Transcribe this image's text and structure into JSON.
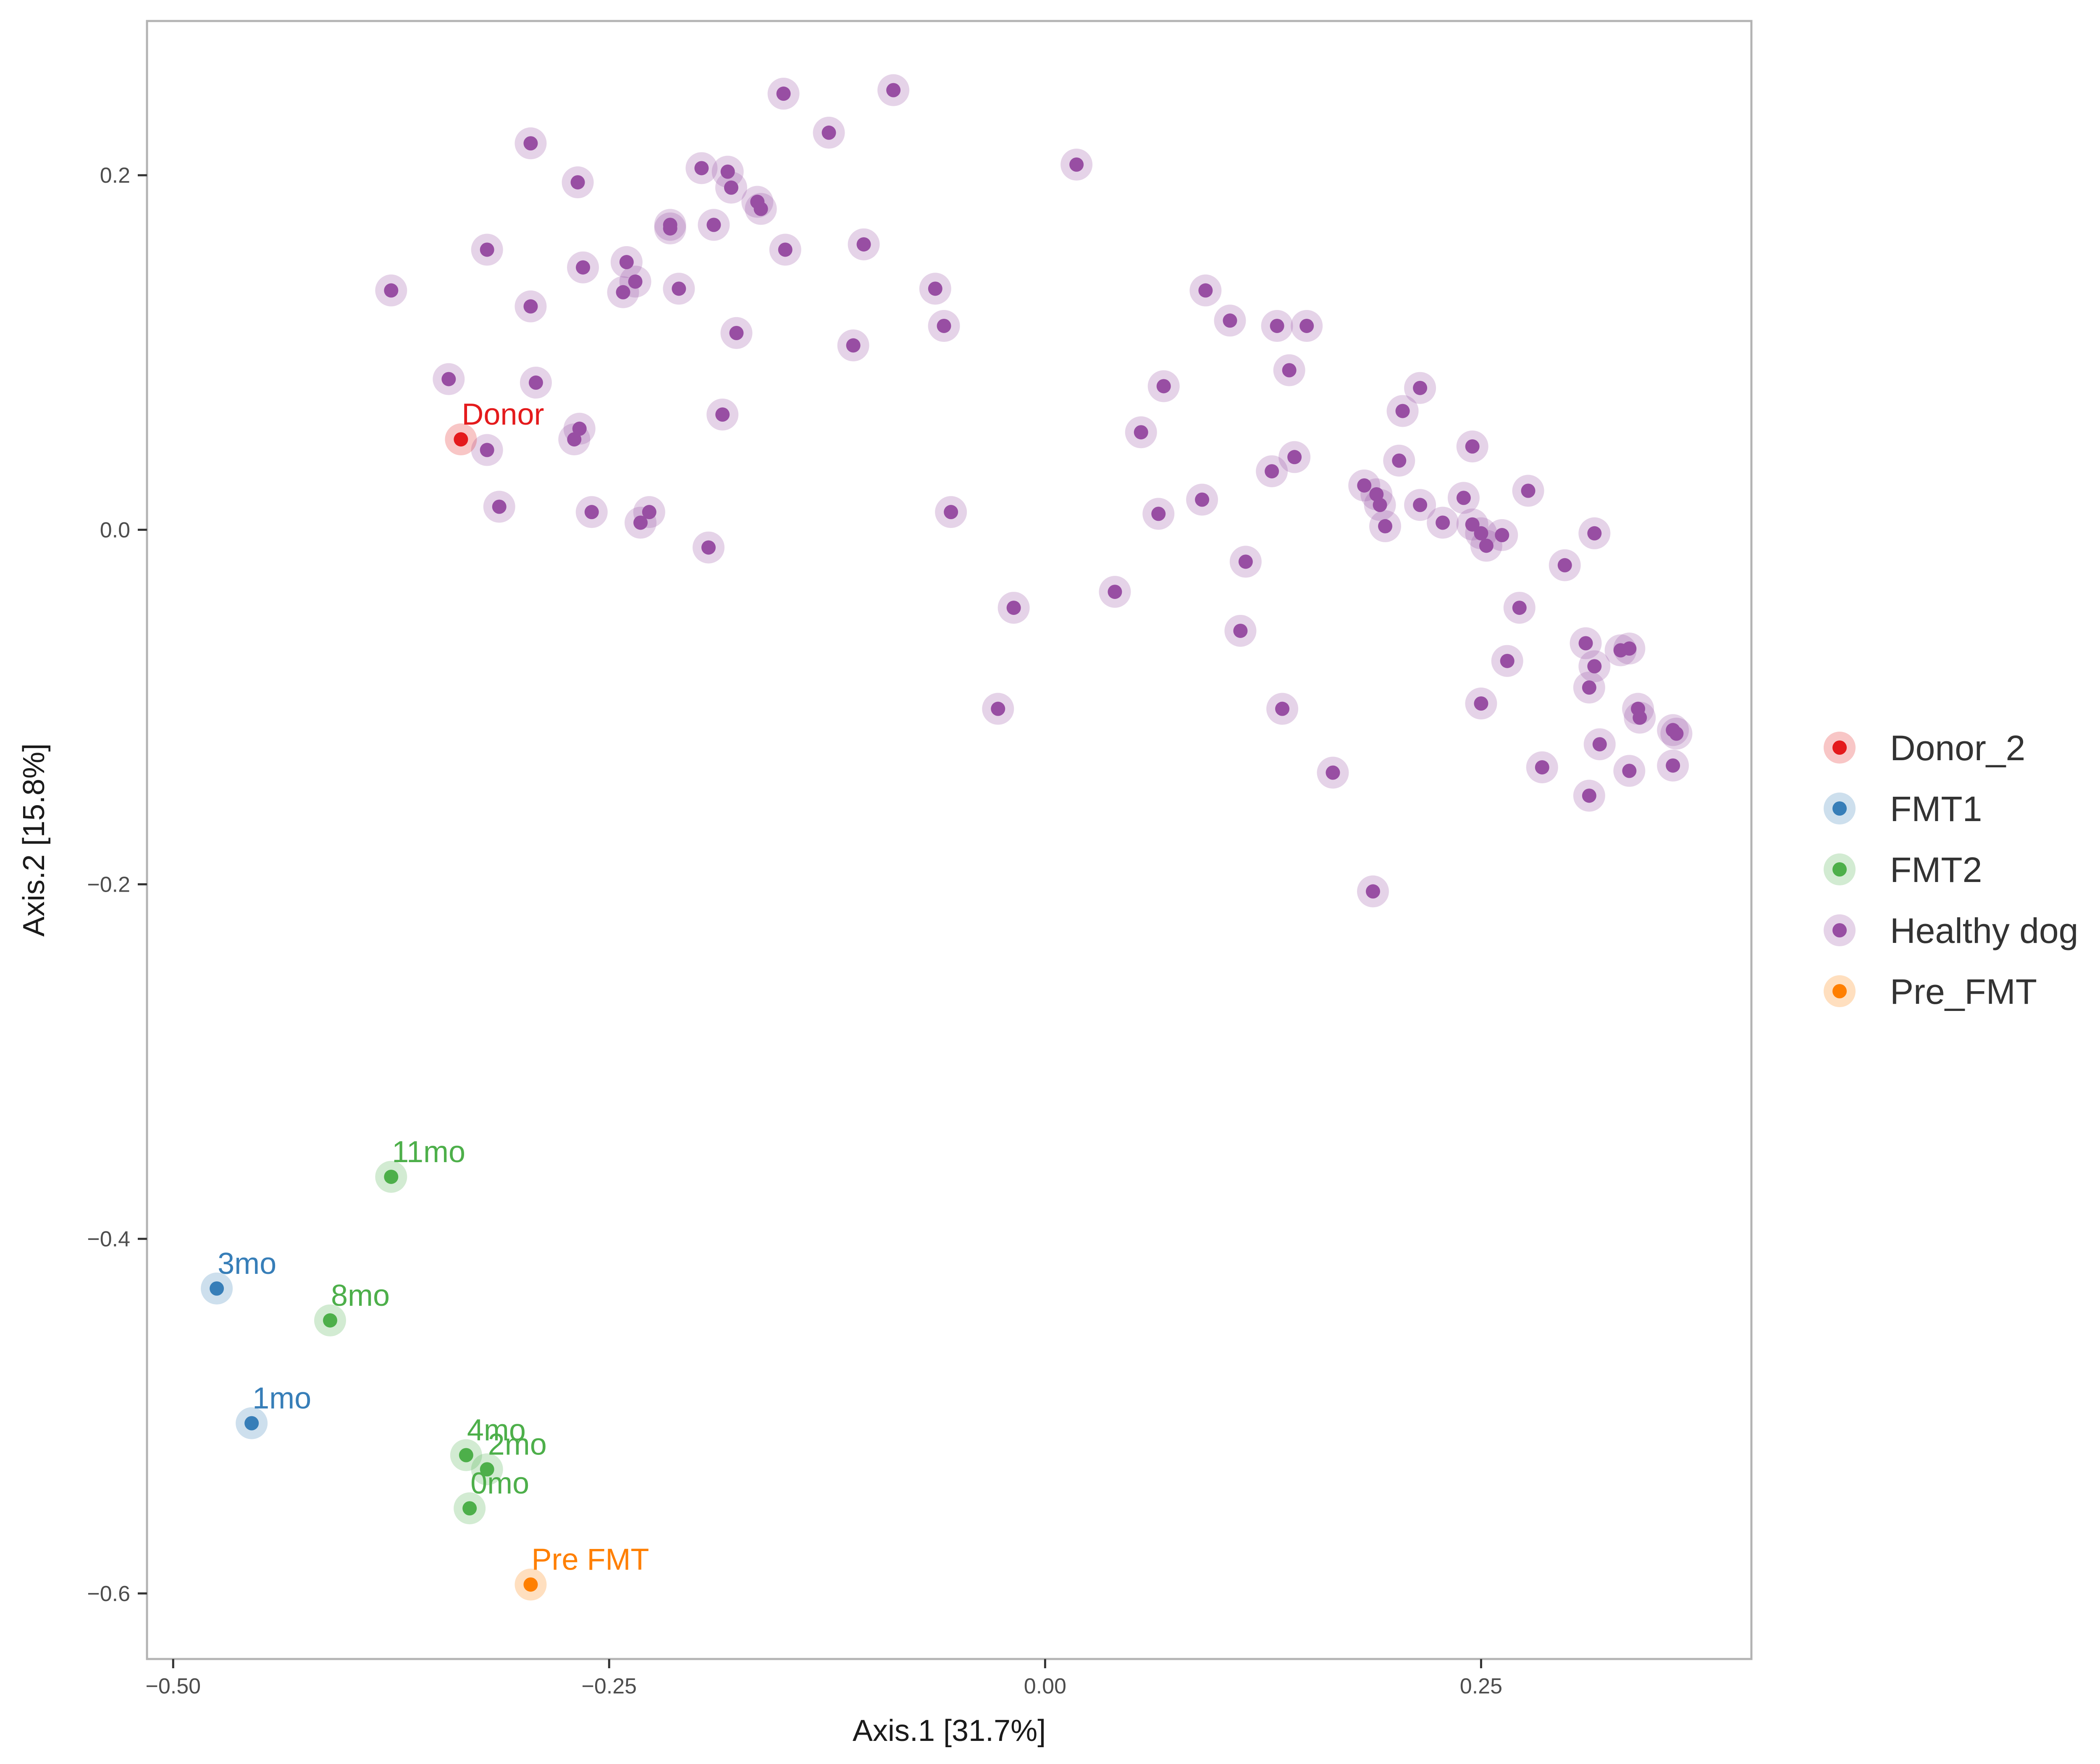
{
  "colors": {
    "Donor_2": "#e41a1c",
    "FMT1": "#377eb8",
    "FMT2": "#4daf4a",
    "Healthy dog": "#984ea3",
    "Pre_FMT": "#ff7f00"
  },
  "chart_data": {
    "type": "scatter",
    "title": "",
    "xlabel": "Axis.1   [31.7%]",
    "ylabel": "Axis.2   [15.8%]",
    "xlim": [
      -0.515,
      0.405
    ],
    "ylim": [
      -0.637,
      0.287
    ],
    "xticks": [
      -0.5,
      -0.25,
      0.0,
      0.25
    ],
    "xtick_labels": [
      "−0.50",
      "−0.25",
      "0.00",
      "0.25"
    ],
    "yticks": [
      -0.6,
      -0.4,
      -0.2,
      0.0,
      0.2
    ],
    "ytick_labels": [
      "−0.6",
      "−0.4",
      "−0.2",
      "0.0",
      "0.2"
    ],
    "grid": false,
    "legend_position": "right",
    "legend": [
      "Donor_2",
      "FMT1",
      "FMT2",
      "Healthy dog",
      "Pre_FMT"
    ],
    "series": [
      {
        "name": "Donor_2",
        "points": [
          {
            "x": -0.335,
            "y": 0.051,
            "label": "Donor"
          }
        ]
      },
      {
        "name": "FMT1",
        "points": [
          {
            "x": -0.475,
            "y": -0.428,
            "label": "3mo"
          },
          {
            "x": -0.455,
            "y": -0.504,
            "label": "1mo"
          }
        ]
      },
      {
        "name": "FMT2",
        "points": [
          {
            "x": -0.375,
            "y": -0.365,
            "label": "11mo"
          },
          {
            "x": -0.41,
            "y": -0.446,
            "label": "8mo"
          },
          {
            "x": -0.332,
            "y": -0.522,
            "label": "4mo"
          },
          {
            "x": -0.32,
            "y": -0.53,
            "label": "2mo"
          },
          {
            "x": -0.33,
            "y": -0.552,
            "label": "0mo"
          }
        ]
      },
      {
        "name": "Pre_FMT",
        "points": [
          {
            "x": -0.295,
            "y": -0.595,
            "label": "Pre FMT"
          }
        ]
      },
      {
        "name": "Healthy dog",
        "points": [
          {
            "x": -0.375,
            "y": 0.135
          },
          {
            "x": -0.342,
            "y": 0.085
          },
          {
            "x": -0.32,
            "y": 0.158
          },
          {
            "x": -0.295,
            "y": 0.218
          },
          {
            "x": -0.295,
            "y": 0.126
          },
          {
            "x": -0.292,
            "y": 0.083
          },
          {
            "x": -0.32,
            "y": 0.045
          },
          {
            "x": -0.313,
            "y": 0.013
          },
          {
            "x": -0.268,
            "y": 0.196
          },
          {
            "x": -0.265,
            "y": 0.148
          },
          {
            "x": -0.27,
            "y": 0.051
          },
          {
            "x": -0.267,
            "y": 0.057
          },
          {
            "x": -0.26,
            "y": 0.01
          },
          {
            "x": -0.242,
            "y": 0.134
          },
          {
            "x": -0.24,
            "y": 0.151
          },
          {
            "x": -0.235,
            "y": 0.14
          },
          {
            "x": -0.232,
            "y": 0.004
          },
          {
            "x": -0.227,
            "y": 0.01
          },
          {
            "x": -0.215,
            "y": 0.172
          },
          {
            "x": -0.215,
            "y": 0.17
          },
          {
            "x": -0.21,
            "y": 0.136
          },
          {
            "x": -0.197,
            "y": 0.204
          },
          {
            "x": -0.193,
            "y": -0.01
          },
          {
            "x": -0.19,
            "y": 0.172
          },
          {
            "x": -0.185,
            "y": 0.065
          },
          {
            "x": -0.182,
            "y": 0.202
          },
          {
            "x": -0.18,
            "y": 0.193
          },
          {
            "x": -0.177,
            "y": 0.111
          },
          {
            "x": -0.165,
            "y": 0.185
          },
          {
            "x": -0.163,
            "y": 0.181
          },
          {
            "x": -0.15,
            "y": 0.246
          },
          {
            "x": -0.149,
            "y": 0.158
          },
          {
            "x": -0.124,
            "y": 0.224
          },
          {
            "x": -0.11,
            "y": 0.104
          },
          {
            "x": -0.104,
            "y": 0.161
          },
          {
            "x": -0.087,
            "y": 0.248
          },
          {
            "x": -0.063,
            "y": 0.136
          },
          {
            "x": -0.058,
            "y": 0.115
          },
          {
            "x": -0.054,
            "y": 0.01
          },
          {
            "x": -0.027,
            "y": -0.101
          },
          {
            "x": -0.018,
            "y": -0.044
          },
          {
            "x": 0.018,
            "y": 0.206
          },
          {
            "x": 0.04,
            "y": -0.035
          },
          {
            "x": 0.055,
            "y": 0.055
          },
          {
            "x": 0.065,
            "y": 0.009
          },
          {
            "x": 0.068,
            "y": 0.081
          },
          {
            "x": 0.09,
            "y": 0.017
          },
          {
            "x": 0.092,
            "y": 0.135
          },
          {
            "x": 0.106,
            "y": 0.118
          },
          {
            "x": 0.112,
            "y": -0.057
          },
          {
            "x": 0.115,
            "y": -0.018
          },
          {
            "x": 0.13,
            "y": 0.033
          },
          {
            "x": 0.133,
            "y": 0.115
          },
          {
            "x": 0.136,
            "y": -0.101
          },
          {
            "x": 0.14,
            "y": 0.09
          },
          {
            "x": 0.143,
            "y": 0.041
          },
          {
            "x": 0.15,
            "y": 0.115
          },
          {
            "x": 0.165,
            "y": -0.137
          },
          {
            "x": 0.183,
            "y": 0.025
          },
          {
            "x": 0.19,
            "y": 0.02
          },
          {
            "x": 0.192,
            "y": 0.014
          },
          {
            "x": 0.195,
            "y": 0.002
          },
          {
            "x": 0.188,
            "y": -0.204
          },
          {
            "x": 0.203,
            "y": 0.039
          },
          {
            "x": 0.205,
            "y": 0.067
          },
          {
            "x": 0.215,
            "y": 0.08
          },
          {
            "x": 0.215,
            "y": 0.014
          },
          {
            "x": 0.228,
            "y": 0.004
          },
          {
            "x": 0.24,
            "y": 0.018
          },
          {
            "x": 0.245,
            "y": 0.003
          },
          {
            "x": 0.245,
            "y": 0.047
          },
          {
            "x": 0.25,
            "y": -0.002
          },
          {
            "x": 0.253,
            "y": -0.009
          },
          {
            "x": 0.25,
            "y": -0.098
          },
          {
            "x": 0.262,
            "y": -0.003
          },
          {
            "x": 0.265,
            "y": -0.074
          },
          {
            "x": 0.272,
            "y": -0.044
          },
          {
            "x": 0.277,
            "y": 0.022
          },
          {
            "x": 0.285,
            "y": -0.134
          },
          {
            "x": 0.298,
            "y": -0.02
          },
          {
            "x": 0.31,
            "y": -0.064
          },
          {
            "x": 0.312,
            "y": -0.089
          },
          {
            "x": 0.312,
            "y": -0.15
          },
          {
            "x": 0.315,
            "y": -0.002
          },
          {
            "x": 0.315,
            "y": -0.077
          },
          {
            "x": 0.318,
            "y": -0.121
          },
          {
            "x": 0.33,
            "y": -0.068
          },
          {
            "x": 0.335,
            "y": -0.067
          },
          {
            "x": 0.335,
            "y": -0.136
          },
          {
            "x": 0.34,
            "y": -0.101
          },
          {
            "x": 0.341,
            "y": -0.106
          },
          {
            "x": 0.36,
            "y": -0.113
          },
          {
            "x": 0.362,
            "y": -0.115
          },
          {
            "x": 0.36,
            "y": -0.133
          }
        ]
      }
    ]
  }
}
